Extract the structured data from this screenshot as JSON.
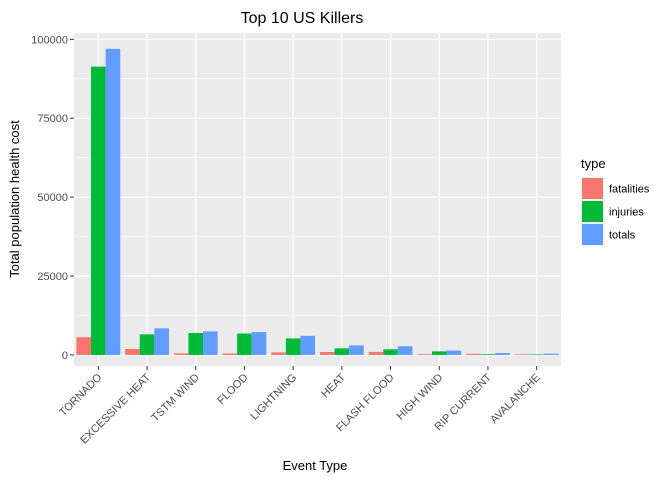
{
  "chart_data": {
    "type": "bar",
    "title": "Top 10 US Killers",
    "xlabel": "Event Type",
    "ylabel": "Total population health cost",
    "categories": [
      "TORNADO",
      "EXCESSIVE HEAT",
      "TSTM WIND",
      "FLOOD",
      "LIGHTNING",
      "HEAT",
      "FLASH FLOOD",
      "HIGH WIND",
      "RIP CURRENT",
      "AVALANCHE"
    ],
    "series": [
      {
        "name": "fatalities",
        "color": "#F8766D",
        "values": [
          5633,
          1903,
          504,
          470,
          816,
          937,
          978,
          248,
          368,
          224
        ]
      },
      {
        "name": "injuries",
        "color": "#00BA38",
        "values": [
          91346,
          6525,
          6957,
          6789,
          5230,
          2100,
          1777,
          1137,
          232,
          170
        ]
      },
      {
        "name": "totals",
        "color": "#619CFF",
        "values": [
          96979,
          8428,
          7461,
          7259,
          6046,
          3037,
          2755,
          1385,
          600,
          394
        ]
      }
    ],
    "ylim": [
      -3500,
      102000
    ],
    "yticks": [
      0,
      25000,
      50000,
      75000,
      100000
    ],
    "ytick_labels": [
      "0",
      "25000",
      "50000",
      "75000",
      "100000"
    ],
    "legend": {
      "title": "type",
      "position": "right"
    },
    "grid": true,
    "background": "#EBEBEB"
  }
}
